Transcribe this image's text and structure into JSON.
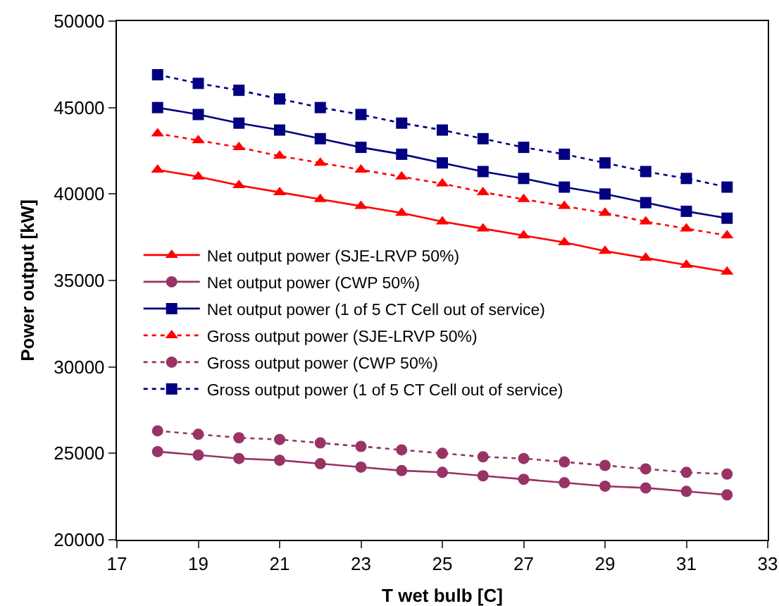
{
  "chart_data": {
    "type": "line",
    "xlabel": "T wet bulb [C]",
    "ylabel": "Power output [kW]",
    "x": [
      18,
      19,
      20,
      21,
      22,
      23,
      24,
      25,
      26,
      27,
      28,
      29,
      30,
      31,
      32
    ],
    "xlim": [
      17,
      33
    ],
    "xticks": [
      17,
      19,
      21,
      23,
      25,
      27,
      29,
      31,
      33
    ],
    "ylim": [
      20000,
      50000
    ],
    "yticks": [
      20000,
      25000,
      30000,
      35000,
      40000,
      45000,
      50000
    ],
    "grid": false,
    "legend": "left",
    "series": [
      {
        "name": "Net output power (SJE-LRVP 50%)",
        "color": "#ff0000",
        "marker": "triangle",
        "line_style": "solid",
        "values": [
          41400,
          41000,
          40500,
          40100,
          39700,
          39300,
          38900,
          38400,
          38000,
          37600,
          37200,
          36700,
          36300,
          35900,
          35500
        ]
      },
      {
        "name": "Net output power (CWP 50%)",
        "color": "#993366",
        "marker": "circle",
        "line_style": "solid",
        "values": [
          25100,
          24900,
          24700,
          24600,
          24400,
          24200,
          24000,
          23900,
          23700,
          23500,
          23300,
          23100,
          23000,
          22800,
          22600
        ]
      },
      {
        "name": "Net output power (1 of 5 CT Cell out of service)",
        "color": "#000080",
        "marker": "square",
        "line_style": "solid",
        "values": [
          45000,
          44600,
          44100,
          43700,
          43200,
          42700,
          42300,
          41800,
          41300,
          40900,
          40400,
          40000,
          39500,
          39000,
          38600
        ]
      },
      {
        "name": "Gross output power (SJE-LRVP 50%)",
        "color": "#ff0000",
        "marker": "triangle",
        "line_style": "dotted",
        "values": [
          43500,
          43100,
          42700,
          42200,
          41800,
          41400,
          41000,
          40600,
          40100,
          39700,
          39300,
          38900,
          38400,
          38000,
          37600
        ]
      },
      {
        "name": "Gross output power (CWP 50%)",
        "color": "#993366",
        "marker": "circle",
        "line_style": "dotted",
        "values": [
          26300,
          26100,
          25900,
          25800,
          25600,
          25400,
          25200,
          25000,
          24800,
          24700,
          24500,
          24300,
          24100,
          23900,
          23800
        ]
      },
      {
        "name": "Gross output power (1 of 5 CT Cell out of service)",
        "color": "#000080",
        "marker": "square",
        "line_style": "dotted",
        "values": [
          46900,
          46400,
          46000,
          45500,
          45000,
          44600,
          44100,
          43700,
          43200,
          42700,
          42300,
          41800,
          41300,
          40900,
          40400
        ]
      }
    ]
  }
}
